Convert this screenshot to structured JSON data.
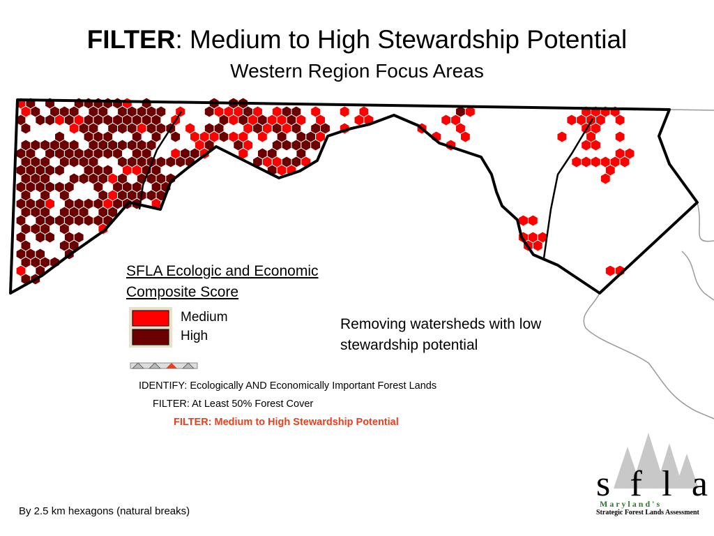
{
  "header": {
    "title_bold": "FILTER",
    "title_rest": ":  Medium to High Stewardship Potential",
    "subtitle": "Western Region Focus Areas"
  },
  "legend": {
    "title_line1": "SFLA Ecologic and Economic",
    "title_line2": "Composite Score",
    "items": [
      {
        "label": "Medium",
        "color": "#ff0000"
      },
      {
        "label": "High",
        "color": "#6b0000"
      }
    ]
  },
  "note": "Removing watersheds with low stewardship potential",
  "steps": [
    "IDENTIFY:  Ecologically AND Economically Important Forest Lands",
    "FILTER:  At Least 50% Forest Cover",
    "FILTER:  Medium to High Stewardship Potential"
  ],
  "footer": "By 2.5 km hexagons (natural breaks)",
  "logo": {
    "letters": "s f l a",
    "state": "M a r y l a n d ' s",
    "name": "Strategic Forest Lands Assessment"
  }
}
